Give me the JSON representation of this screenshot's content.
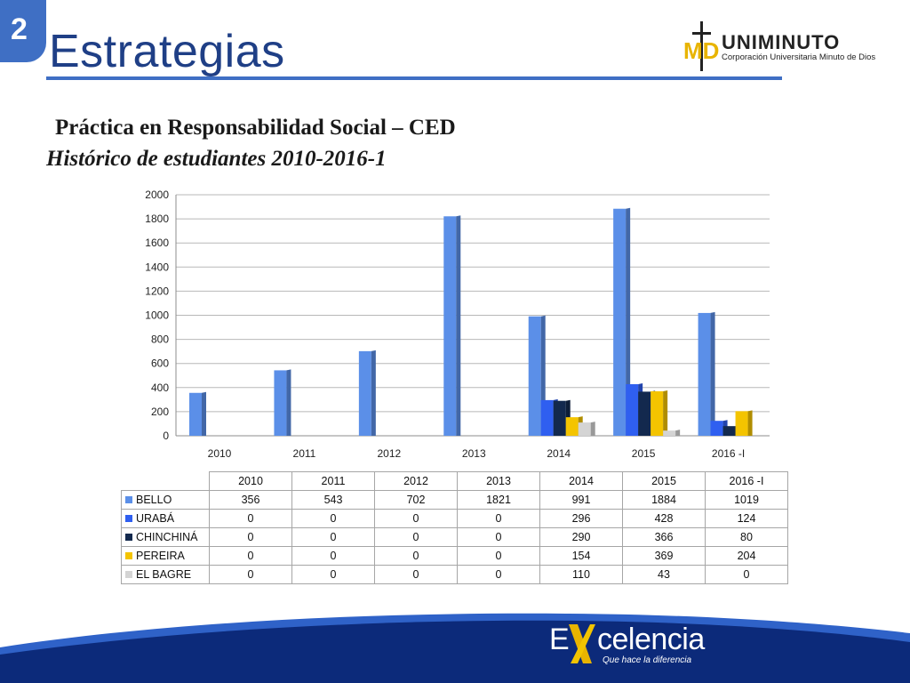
{
  "header": {
    "slide_number": "2",
    "title": "Estrategias",
    "logo": {
      "name": "UNIMINUTO",
      "subtitle": "Corporación Universitaria Minuto de Dios",
      "mark": "MD"
    }
  },
  "headings": {
    "line1": "Práctica en Responsabilidad Social – CED",
    "line2": "Histórico de estudiantes 2010-2016-1"
  },
  "chart_data": {
    "type": "bar",
    "categories": [
      "2010",
      "2011",
      "2012",
      "2013",
      "2014",
      "2015",
      "2016 -I"
    ],
    "ylim": [
      0,
      2000
    ],
    "yticks": [
      "0",
      "200",
      "400",
      "600",
      "800",
      "1000",
      "1200",
      "1400",
      "1600",
      "1800",
      "2000"
    ],
    "grid": true,
    "series": [
      {
        "name": "BELLO",
        "color": "#5b8fe8",
        "values": [
          356,
          543,
          702,
          1821,
          991,
          1884,
          1019
        ]
      },
      {
        "name": "URABÁ",
        "color": "#2f5ff0",
        "values": [
          0,
          0,
          0,
          0,
          296,
          428,
          124
        ]
      },
      {
        "name": "CHINCHINÁ",
        "color": "#13294e",
        "values": [
          0,
          0,
          0,
          0,
          290,
          366,
          80
        ]
      },
      {
        "name": "PEREIRA",
        "color": "#f4c400",
        "values": [
          0,
          0,
          0,
          0,
          154,
          369,
          204
        ]
      },
      {
        "name": "EL BAGRE",
        "color": "#d4d4d4",
        "values": [
          0,
          0,
          0,
          0,
          110,
          43,
          0
        ]
      }
    ]
  },
  "footer": {
    "logo_prefix": "E",
    "logo_rest": "celencia",
    "tagline": "Que hace la diferencia"
  },
  "colors": {
    "accent": "#3f6fc4",
    "title": "#1f3f86",
    "footer_dark": "#0c2a7a",
    "footer_light": "#2f62c8",
    "logo_gold": "#e8b400"
  }
}
